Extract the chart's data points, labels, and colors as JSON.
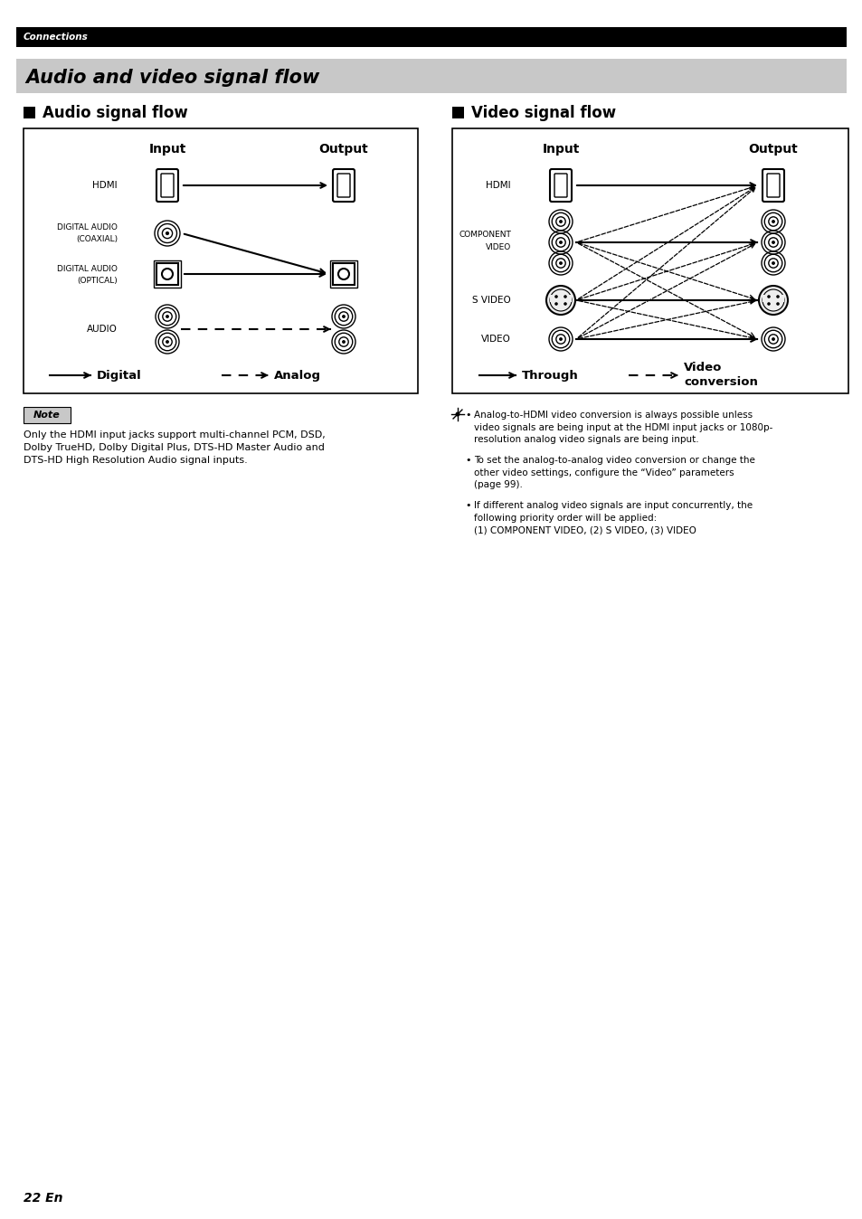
{
  "page_title": "Connections",
  "main_title": "Audio and video signal flow",
  "section1_title": "Audio signal flow",
  "section2_title": "Video signal flow",
  "bg_color": "#ffffff",
  "note_title": "Note",
  "note_text": "Only the HDMI input jacks support multi-channel PCM, DSD,\nDolby TrueHD, Dolby Digital Plus, DTS-HD Master Audio and\nDTS-HD High Resolution Audio signal inputs.",
  "video_bullet1": "Analog-to-HDMI video conversion is always possible unless\nvideo signals are being input at the HDMI input jacks or 1080p-\nresolution analog video signals are being input.",
  "video_bullet2": "To set the analog-to-analog video conversion or change the\nother video settings, configure the “Video” parameters\n(page 99).",
  "video_bullet3": "If different analog video signals are input concurrently, the\nfollowing priority order will be applied:\n(1) COMPONENT VIDEO, (2) S VIDEO, (3) VIDEO",
  "page_number": "22 En"
}
